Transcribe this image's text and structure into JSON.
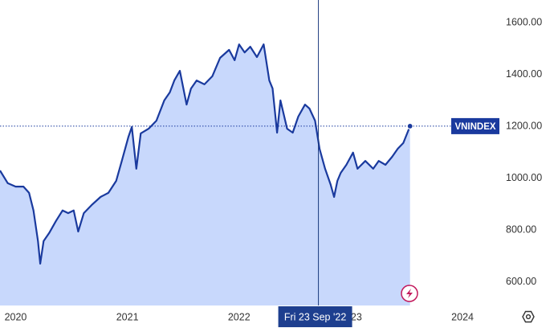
{
  "chart_data": {
    "type": "area",
    "series": [
      {
        "name": "VNINDEX",
        "color": "#1a3a9e",
        "fill": "#c8d8fc",
        "values": [
          1030,
          981,
          968,
          968,
          944,
          876,
          758,
          671,
          758,
          789,
          835,
          876,
          866,
          876,
          795,
          866,
          897,
          928,
          944,
          990,
          1067,
          1160,
          1198,
          1037,
          1173,
          1191,
          1222,
          1300,
          1331,
          1377,
          1414,
          1284,
          1346,
          1377,
          1362,
          1393,
          1464,
          1495,
          1455,
          1516,
          1485,
          1507,
          1467,
          1516,
          1377,
          1346,
          1176,
          1300,
          1191,
          1176,
          1238,
          1284,
          1269,
          1222,
          1114,
          1037,
          975,
          928,
          990,
          1021,
          1052,
          1099,
          1037,
          1067,
          1037,
          1067,
          1052,
          1083,
          1114,
          1136,
          1201
        ]
      }
    ],
    "x": [
      2019.86,
      2019.93,
      2020.0,
      2020.07,
      2020.12,
      2020.16,
      2020.2,
      2020.22,
      2020.25,
      2020.3,
      2020.36,
      2020.42,
      2020.47,
      2020.52,
      2020.56,
      2020.61,
      2020.68,
      2020.76,
      2020.83,
      2020.9,
      2020.95,
      2021.01,
      2021.04,
      2021.08,
      2021.12,
      2021.19,
      2021.26,
      2021.33,
      2021.38,
      2021.42,
      2021.47,
      2021.53,
      2021.57,
      2021.62,
      2021.69,
      2021.76,
      2021.83,
      2021.91,
      2021.96,
      2022.0,
      2022.05,
      2022.1,
      2022.16,
      2022.22,
      2022.27,
      2022.3,
      2022.34,
      2022.37,
      2022.43,
      2022.48,
      2022.53,
      2022.59,
      2022.63,
      2022.68,
      2022.72,
      2022.77,
      2022.82,
      2022.85,
      2022.88,
      2022.91,
      2022.96,
      2023.02,
      2023.06,
      2023.13,
      2023.2,
      2023.25,
      2023.31,
      2023.37,
      2023.42,
      2023.47,
      2023.53
    ],
    "xlim": [
      2019.86,
      2024.33
    ],
    "xticks": [
      2020,
      2021,
      2022,
      2023,
      2024
    ],
    "ylim": [
      510,
      1687
    ],
    "yticks": [
      {
        "value": 600,
        "label": "600.00"
      },
      {
        "value": 800,
        "label": "800.00"
      },
      {
        "value": 1000,
        "label": "1000.00"
      },
      {
        "value": 1200,
        "label": "1200.00"
      },
      {
        "value": 1400,
        "label": "1400.00"
      },
      {
        "value": 1600,
        "label": "1600.00"
      }
    ],
    "crosshair": {
      "x": 2022.71,
      "label": "Fri 23 Sep '22"
    }
  }
}
